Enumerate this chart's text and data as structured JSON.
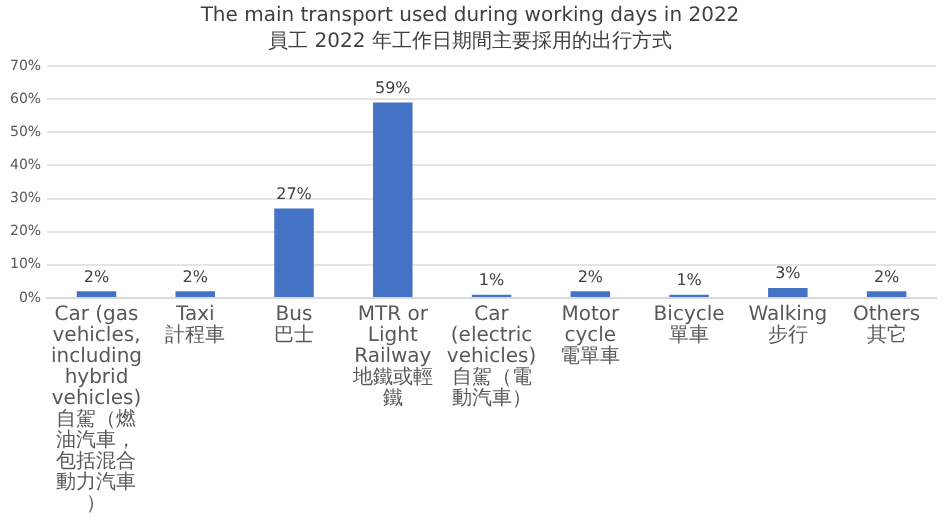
{
  "chart_data": {
    "type": "bar",
    "title": "The main transport used during working days in 2022",
    "subtitle": "員工 2022 年工作日期間主要採用的出行方式",
    "categories": [
      "Car (gas vehicles, including hybrid vehicles)\n自駕（燃油汽車，包括混合動力汽車）",
      "Taxi\n計程車",
      "Bus\n巴士",
      "MTR or Light Railway\n地鐵或輕鐵",
      "Car (electric vehicles)\n自駕（電動汽車）",
      "Motor cycle\n電單車",
      "Bicycle\n單車",
      "Walking\n步行",
      "Others\n其它"
    ],
    "values": [
      2,
      2,
      27,
      59,
      1,
      2,
      1,
      3,
      2
    ],
    "value_labels": [
      "2%",
      "2%",
      "27%",
      "59%",
      "1%",
      "2%",
      "1%",
      "3%",
      "2%"
    ],
    "color": "#4472c4",
    "ylim": [
      0,
      70
    ],
    "yticks": [
      {
        "value": 0,
        "label": "0%"
      },
      {
        "value": 10,
        "label": "10%"
      },
      {
        "value": 20,
        "label": "20%"
      },
      {
        "value": 30,
        "label": "30%"
      },
      {
        "value": 40,
        "label": "40%"
      },
      {
        "value": 50,
        "label": "50%"
      },
      {
        "value": 60,
        "label": "60%"
      },
      {
        "value": 70,
        "label": "70%"
      }
    ],
    "grid": "y",
    "legend": false
  }
}
